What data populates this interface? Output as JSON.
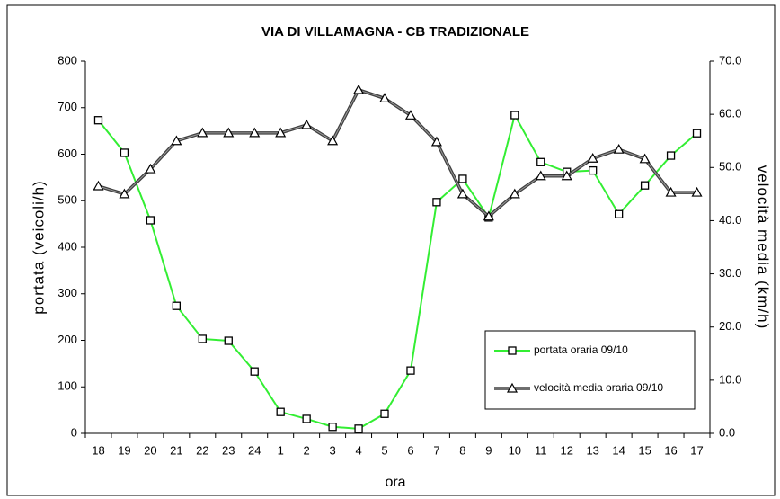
{
  "chart_data": {
    "type": "line",
    "title": "VIA DI VILLAMAGNA - CB TRADIZIONALE",
    "xlabel": "ora",
    "ylabel": "portata (veicoli/h)",
    "y2label": "velocità media (km/h)",
    "categories": [
      "18",
      "19",
      "20",
      "21",
      "22",
      "23",
      "24",
      "1",
      "2",
      "3",
      "4",
      "5",
      "6",
      "7",
      "8",
      "9",
      "10",
      "11",
      "12",
      "13",
      "14",
      "15",
      "16",
      "17"
    ],
    "series": [
      {
        "name": "portata oraria 09/10",
        "color": "#33ee33",
        "marker": "square",
        "axis": "y",
        "values": [
          673,
          603,
          458,
          274,
          203,
          199,
          133,
          46,
          31,
          14,
          10,
          42,
          135,
          497,
          547,
          464,
          684,
          583,
          562,
          565,
          471,
          533,
          597,
          645
        ]
      },
      {
        "name": "velocità media oraria 09/10",
        "color": "#404040",
        "marker": "triangle",
        "axis": "y2",
        "values": [
          46.5,
          45,
          49.7,
          55,
          56.5,
          56.5,
          56.5,
          56.5,
          58,
          55,
          64.6,
          63,
          59.8,
          54.8,
          45,
          40.8,
          45,
          48.4,
          48.4,
          51.7,
          53.4,
          51.6,
          45.3,
          45.3
        ]
      }
    ],
    "ylim": [
      0,
      800
    ],
    "yticks": [
      0,
      100,
      200,
      300,
      400,
      500,
      600,
      700,
      800
    ],
    "y2lim": [
      0,
      70
    ],
    "y2ticks": [
      {
        "value": 0,
        "label": "0.0"
      },
      {
        "value": 10,
        "label": "10.0"
      },
      {
        "value": 20,
        "label": "20.0"
      },
      {
        "value": 30,
        "label": "30.0"
      },
      {
        "value": 40,
        "label": "40.0"
      },
      {
        "value": 50,
        "label": "50.0"
      },
      {
        "value": 60,
        "label": "60.0"
      },
      {
        "value": 70,
        "label": "70.0"
      }
    ],
    "grid": false,
    "legend": "lower right"
  }
}
